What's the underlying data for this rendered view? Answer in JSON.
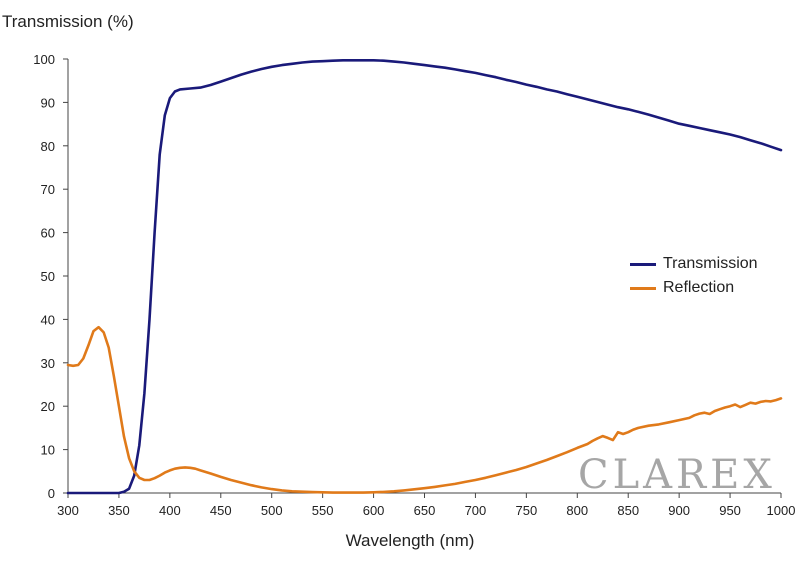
{
  "chart_data": {
    "type": "line",
    "xlabel": "Wavelength (nm)",
    "ylabel": "Transmission (%)",
    "xlim": [
      300,
      1000
    ],
    "ylim": [
      0,
      100
    ],
    "xticks": [
      300,
      350,
      400,
      450,
      500,
      550,
      600,
      650,
      700,
      750,
      800,
      850,
      900,
      950,
      1000
    ],
    "yticks": [
      0,
      10,
      20,
      30,
      40,
      50,
      60,
      70,
      80,
      90,
      100
    ],
    "grid": false,
    "legend_position": "right",
    "watermark": "CLAREX",
    "series": [
      {
        "name": "Transmission",
        "color": "#1a1a7a",
        "points": [
          [
            300,
            0
          ],
          [
            340,
            0
          ],
          [
            350,
            0
          ],
          [
            355,
            0.3
          ],
          [
            360,
            1
          ],
          [
            365,
            4
          ],
          [
            370,
            11
          ],
          [
            375,
            23
          ],
          [
            380,
            40
          ],
          [
            385,
            60
          ],
          [
            390,
            78
          ],
          [
            395,
            87
          ],
          [
            400,
            91
          ],
          [
            405,
            92.5
          ],
          [
            410,
            93
          ],
          [
            420,
            93.2
          ],
          [
            430,
            93.4
          ],
          [
            440,
            94
          ],
          [
            450,
            94.8
          ],
          [
            460,
            95.6
          ],
          [
            470,
            96.4
          ],
          [
            480,
            97.1
          ],
          [
            490,
            97.7
          ],
          [
            500,
            98.2
          ],
          [
            510,
            98.6
          ],
          [
            520,
            98.9
          ],
          [
            530,
            99.2
          ],
          [
            540,
            99.4
          ],
          [
            550,
            99.5
          ],
          [
            560,
            99.6
          ],
          [
            570,
            99.7
          ],
          [
            580,
            99.7
          ],
          [
            590,
            99.7
          ],
          [
            600,
            99.7
          ],
          [
            610,
            99.6
          ],
          [
            620,
            99.4
          ],
          [
            630,
            99.2
          ],
          [
            640,
            98.9
          ],
          [
            650,
            98.6
          ],
          [
            660,
            98.3
          ],
          [
            670,
            98
          ],
          [
            680,
            97.6
          ],
          [
            690,
            97.2
          ],
          [
            700,
            96.8
          ],
          [
            710,
            96.3
          ],
          [
            720,
            95.8
          ],
          [
            730,
            95.2
          ],
          [
            740,
            94.7
          ],
          [
            750,
            94.1
          ],
          [
            760,
            93.6
          ],
          [
            770,
            93
          ],
          [
            780,
            92.5
          ],
          [
            790,
            91.9
          ],
          [
            800,
            91.3
          ],
          [
            810,
            90.7
          ],
          [
            820,
            90.1
          ],
          [
            830,
            89.5
          ],
          [
            840,
            88.9
          ],
          [
            850,
            88.4
          ],
          [
            860,
            87.8
          ],
          [
            870,
            87.2
          ],
          [
            880,
            86.5
          ],
          [
            890,
            85.8
          ],
          [
            900,
            85.1
          ],
          [
            910,
            84.6
          ],
          [
            920,
            84.1
          ],
          [
            930,
            83.6
          ],
          [
            940,
            83.1
          ],
          [
            950,
            82.6
          ],
          [
            960,
            82
          ],
          [
            970,
            81.3
          ],
          [
            980,
            80.6
          ],
          [
            990,
            79.8
          ],
          [
            1000,
            79
          ]
        ]
      },
      {
        "name": "Reflection",
        "color": "#e07a1a",
        "points": [
          [
            300,
            29.5
          ],
          [
            305,
            29.3
          ],
          [
            310,
            29.5
          ],
          [
            315,
            31
          ],
          [
            320,
            34
          ],
          [
            325,
            37.3
          ],
          [
            330,
            38.2
          ],
          [
            335,
            37
          ],
          [
            340,
            33.5
          ],
          [
            345,
            27
          ],
          [
            350,
            20
          ],
          [
            355,
            13
          ],
          [
            360,
            8
          ],
          [
            365,
            5
          ],
          [
            370,
            3.5
          ],
          [
            375,
            3
          ],
          [
            380,
            3
          ],
          [
            385,
            3.4
          ],
          [
            390,
            4
          ],
          [
            395,
            4.7
          ],
          [
            400,
            5.2
          ],
          [
            405,
            5.6
          ],
          [
            410,
            5.8
          ],
          [
            415,
            5.9
          ],
          [
            420,
            5.8
          ],
          [
            425,
            5.6
          ],
          [
            430,
            5.2
          ],
          [
            440,
            4.5
          ],
          [
            450,
            3.7
          ],
          [
            460,
            3
          ],
          [
            470,
            2.4
          ],
          [
            480,
            1.8
          ],
          [
            490,
            1.3
          ],
          [
            500,
            0.9
          ],
          [
            510,
            0.6
          ],
          [
            520,
            0.4
          ],
          [
            530,
            0.3
          ],
          [
            540,
            0.2
          ],
          [
            550,
            0.15
          ],
          [
            560,
            0.1
          ],
          [
            570,
            0.1
          ],
          [
            580,
            0.1
          ],
          [
            590,
            0.1
          ],
          [
            600,
            0.15
          ],
          [
            610,
            0.25
          ],
          [
            620,
            0.4
          ],
          [
            630,
            0.6
          ],
          [
            640,
            0.85
          ],
          [
            650,
            1.1
          ],
          [
            660,
            1.4
          ],
          [
            670,
            1.75
          ],
          [
            680,
            2.1
          ],
          [
            690,
            2.55
          ],
          [
            700,
            3
          ],
          [
            710,
            3.5
          ],
          [
            720,
            4.1
          ],
          [
            730,
            4.7
          ],
          [
            740,
            5.3
          ],
          [
            750,
            6
          ],
          [
            760,
            6.8
          ],
          [
            770,
            7.6
          ],
          [
            780,
            8.5
          ],
          [
            790,
            9.4
          ],
          [
            800,
            10.4
          ],
          [
            810,
            11.3
          ],
          [
            815,
            12
          ],
          [
            820,
            12.6
          ],
          [
            825,
            13.1
          ],
          [
            830,
            12.7
          ],
          [
            835,
            12.2
          ],
          [
            840,
            14
          ],
          [
            845,
            13.6
          ],
          [
            850,
            14
          ],
          [
            855,
            14.6
          ],
          [
            860,
            15
          ],
          [
            870,
            15.5
          ],
          [
            880,
            15.8
          ],
          [
            890,
            16.3
          ],
          [
            900,
            16.8
          ],
          [
            910,
            17.3
          ],
          [
            915,
            17.9
          ],
          [
            920,
            18.3
          ],
          [
            925,
            18.5
          ],
          [
            930,
            18.2
          ],
          [
            935,
            18.9
          ],
          [
            940,
            19.3
          ],
          [
            945,
            19.7
          ],
          [
            950,
            20
          ],
          [
            955,
            20.4
          ],
          [
            960,
            19.8
          ],
          [
            965,
            20.3
          ],
          [
            970,
            20.8
          ],
          [
            975,
            20.6
          ],
          [
            980,
            21
          ],
          [
            985,
            21.2
          ],
          [
            990,
            21.1
          ],
          [
            995,
            21.4
          ],
          [
            1000,
            21.8
          ]
        ]
      }
    ]
  }
}
